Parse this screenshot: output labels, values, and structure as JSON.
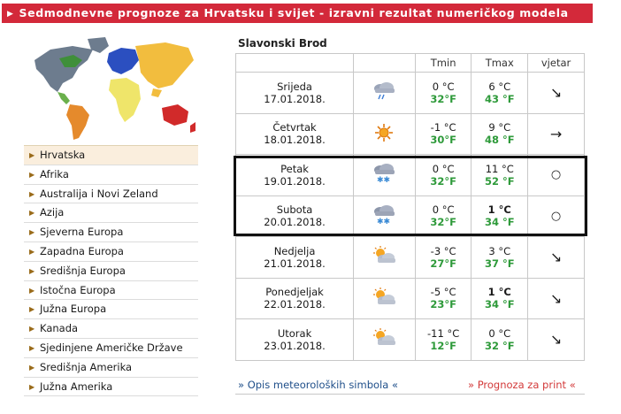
{
  "header": {
    "title": "Sedmodnevne prognoze za Hrvatsku i svijet - izravni rezultat numeričkog modela"
  },
  "regions": [
    "Hrvatska",
    "Afrika",
    "Australija i Novi Zeland",
    "Azija",
    "Sjeverna Europa",
    "Zapadna Europa",
    "Središnja Europa",
    "Istočna Europa",
    "Južna Europa",
    "Kanada",
    "Sjedinjene Američke Države",
    "Središnja Amerika",
    "Južna Amerika"
  ],
  "active_region": "Hrvatska",
  "forecast": {
    "city": "Slavonski Brod",
    "columns": {
      "tmin": "Tmin",
      "tmax": "Tmax",
      "wind": "vjetar"
    },
    "days": [
      {
        "day": "Srijeda",
        "date": "17.01.2018.",
        "icon": "cloud-rain-icon",
        "tmin_c": "0 °C",
        "tmin_f": "32°F",
        "tmax_c": "6 °C",
        "tmax_f": "43 °F",
        "wind": "↘"
      },
      {
        "day": "Četvrtak",
        "date": "18.01.2018.",
        "icon": "sun-icon",
        "tmin_c": "-1 °C",
        "tmin_f": "30°F",
        "tmax_c": "9 °C",
        "tmax_f": "48 °F",
        "wind": "→"
      },
      {
        "day": "Petak",
        "date": "19.01.2018.",
        "icon": "cloud-snow-icon",
        "tmin_c": "0 °C",
        "tmin_f": "32°F",
        "tmax_c": "11 °C",
        "tmax_f": "52 °F",
        "wind": "○"
      },
      {
        "day": "Subota",
        "date": "20.01.2018.",
        "icon": "cloud-snow-icon",
        "tmin_c": "0 °C",
        "tmin_f": "32°F",
        "tmax_c": "1 °C",
        "tmax_f": "34 °F",
        "wind": "○"
      },
      {
        "day": "Nedjelja",
        "date": "21.01.2018.",
        "icon": "sun-cloud-icon",
        "tmin_c": "-3 °C",
        "tmin_f": "27°F",
        "tmax_c": "3 °C",
        "tmax_f": "37 °F",
        "wind": "↘"
      },
      {
        "day": "Ponedjeljak",
        "date": "22.01.2018.",
        "icon": "sun-cloud-icon",
        "tmin_c": "-5 °C",
        "tmin_f": "23°F",
        "tmax_c": "1 °C",
        "tmax_f": "34 °F",
        "wind": "↘"
      },
      {
        "day": "Utorak",
        "date": "23.01.2018.",
        "icon": "sun-cloud-icon",
        "tmin_c": "-11 °C",
        "tmin_f": "12°F",
        "tmax_c": "0 °C",
        "tmax_f": "32 °F",
        "wind": "↘"
      }
    ]
  },
  "links": {
    "symbols": "» Opis meteoroloških simbola «",
    "print": "» Prognoza za print «"
  },
  "colors": {
    "header_bg": "#d3293a",
    "fahrenheit": "#2e9a3a",
    "link_blue": "#1f4f8a",
    "link_red": "#d33a3a"
  }
}
